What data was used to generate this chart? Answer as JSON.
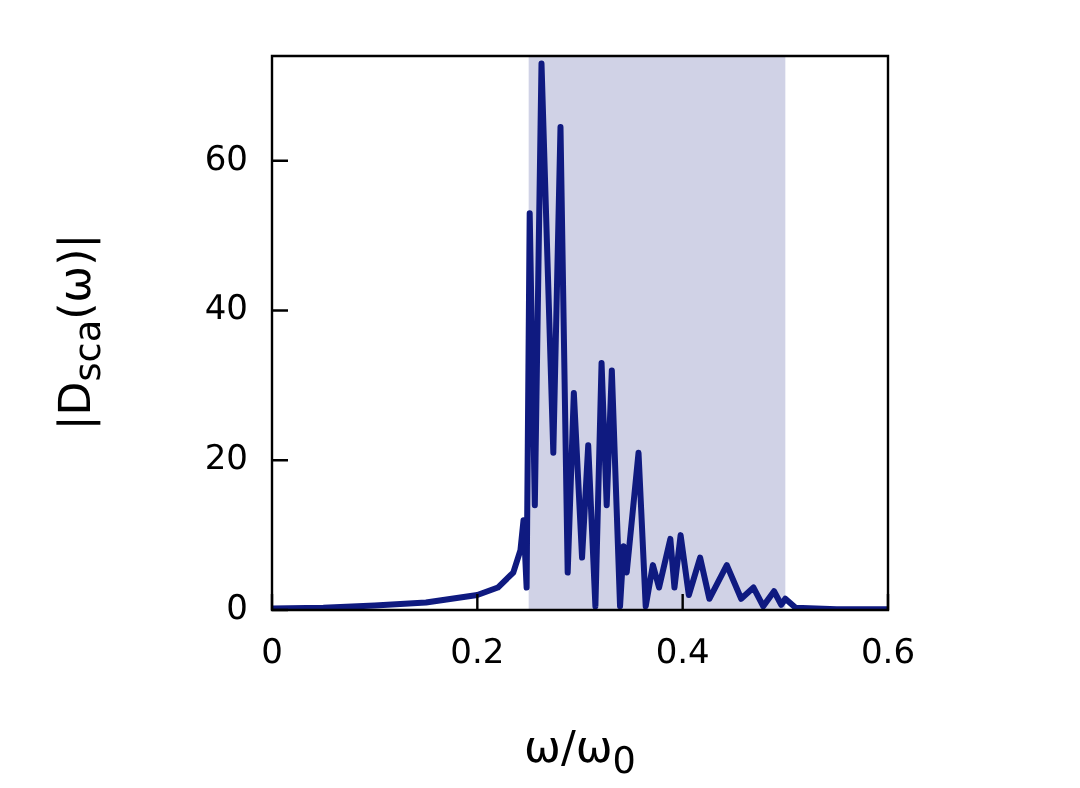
{
  "chart_data": {
    "type": "line",
    "xlabel": "ω/ω$_{0}$",
    "ylabel": "|D$_{sca}$(ω)|",
    "xlim": [
      0,
      0.6
    ],
    "xticks": [
      0,
      0.2,
      0.4,
      0.6
    ],
    "ylim": [
      0,
      74
    ],
    "yticks": [
      0,
      20,
      40,
      60
    ],
    "bands": [
      {
        "axis": "x",
        "from": 0.25,
        "to": 0.5,
        "color": "#d0d2e6"
      }
    ],
    "series": [
      {
        "color": "#0f1a80",
        "x": [
          0,
          0.05,
          0.1,
          0.15,
          0.2,
          0.22,
          0.235,
          0.242,
          0.245,
          0.248,
          0.251,
          0.256,
          0.2625,
          0.274,
          0.281,
          0.288,
          0.294,
          0.302,
          0.308,
          0.315,
          0.321,
          0.326,
          0.331,
          0.339,
          0.3425,
          0.3455,
          0.357,
          0.364,
          0.371,
          0.377,
          0.388,
          0.392,
          0.398,
          0.406,
          0.417,
          0.426,
          0.443,
          0.457,
          0.469,
          0.4785,
          0.489,
          0.496,
          0.5,
          0.51,
          0.55,
          0.6
        ],
        "values": [
          0.2,
          0.3,
          0.6,
          1,
          2,
          3,
          5,
          8,
          12,
          3,
          53,
          14,
          73,
          21,
          64.5,
          5,
          29,
          7,
          22,
          0.5,
          33,
          14,
          32,
          0.5,
          8.5,
          5,
          21,
          0.5,
          6,
          3,
          9.5,
          3,
          10,
          2,
          7,
          1.5,
          6,
          1.5,
          3,
          0.5,
          2.5,
          0.7,
          1.5,
          0.3,
          0.1,
          0.1
        ]
      }
    ]
  }
}
